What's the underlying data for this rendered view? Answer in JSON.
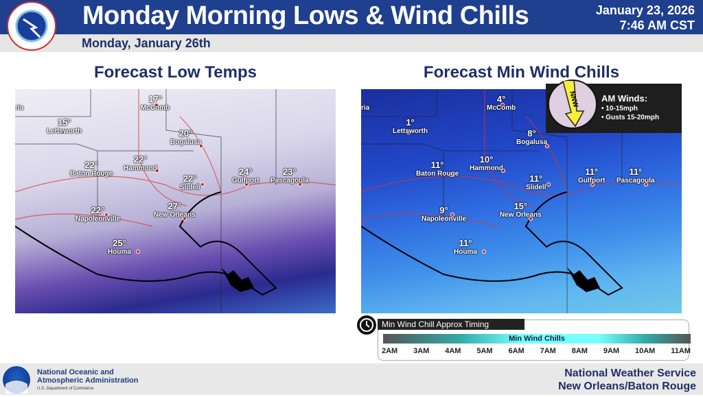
{
  "header": {
    "title": "Monday Morning Lows & Wind Chills",
    "date": "January 23, 2026",
    "time": "7:46 AM CST",
    "subtitle": "Monday, January 26th",
    "logo_text": "NATIONAL WEATHER SERVICE"
  },
  "left_map": {
    "title": "Forecast Low Temps",
    "edge_label": "ria",
    "cities": [
      {
        "name": "McComb",
        "temp": "17°"
      },
      {
        "name": "Lettsworth",
        "temp": "15°"
      },
      {
        "name": "Bogalusa",
        "temp": "20°"
      },
      {
        "name": "Baton Rouge",
        "temp": "22°"
      },
      {
        "name": "Hammond",
        "temp": "22°"
      },
      {
        "name": "Slidell",
        "temp": "22°"
      },
      {
        "name": "Gulfport",
        "temp": "24°"
      },
      {
        "name": "Pascagoula",
        "temp": "23°"
      },
      {
        "name": "Napoleonville",
        "temp": "22°"
      },
      {
        "name": "New Orleans",
        "temp": "27°"
      },
      {
        "name": "Houma",
        "temp": "25°"
      }
    ]
  },
  "right_map": {
    "title": "Forecast Min Wind Chills",
    "edge_label": "ria",
    "cities": [
      {
        "name": "McComb",
        "temp": "4°"
      },
      {
        "name": "Lettsworth",
        "temp": "1°"
      },
      {
        "name": "Bogalusa",
        "temp": "8°"
      },
      {
        "name": "Baton Rouge",
        "temp": "11°"
      },
      {
        "name": "Hammond",
        "temp": "10°"
      },
      {
        "name": "Slidell",
        "temp": "11°"
      },
      {
        "name": "Gulfport",
        "temp": "11°"
      },
      {
        "name": "Pascagoula",
        "temp": "11°"
      },
      {
        "name": "Napoleonville",
        "temp": "9°"
      },
      {
        "name": "New Orleans",
        "temp": "15°"
      },
      {
        "name": "Houma",
        "temp": "11°"
      }
    ]
  },
  "winds": {
    "direction": "NNW",
    "title": "AM Winds:",
    "items": [
      "• 10-15mph",
      "• Gusts 15-20mph"
    ]
  },
  "timing": {
    "label": "Min Wind Chill Approx Timing",
    "bar_label": "Min Wind Chills",
    "hours": [
      "2AM",
      "3AM",
      "4AM",
      "5AM",
      "6AM",
      "7AM",
      "8AM",
      "9AM",
      "10AM",
      "11AM"
    ]
  },
  "footer": {
    "noaa_line1": "National Oceanic and",
    "noaa_line2": "Atmospheric Administration",
    "noaa_dept": "U.S. Department of Commerce",
    "noaa_logo": "NOAA",
    "office1": "National Weather Service",
    "office2": "New Orleans/Baton Rouge"
  },
  "colors": {
    "header": "#1f3f8f",
    "title_text": "#1e2f66",
    "city_dot": "#d82020"
  }
}
